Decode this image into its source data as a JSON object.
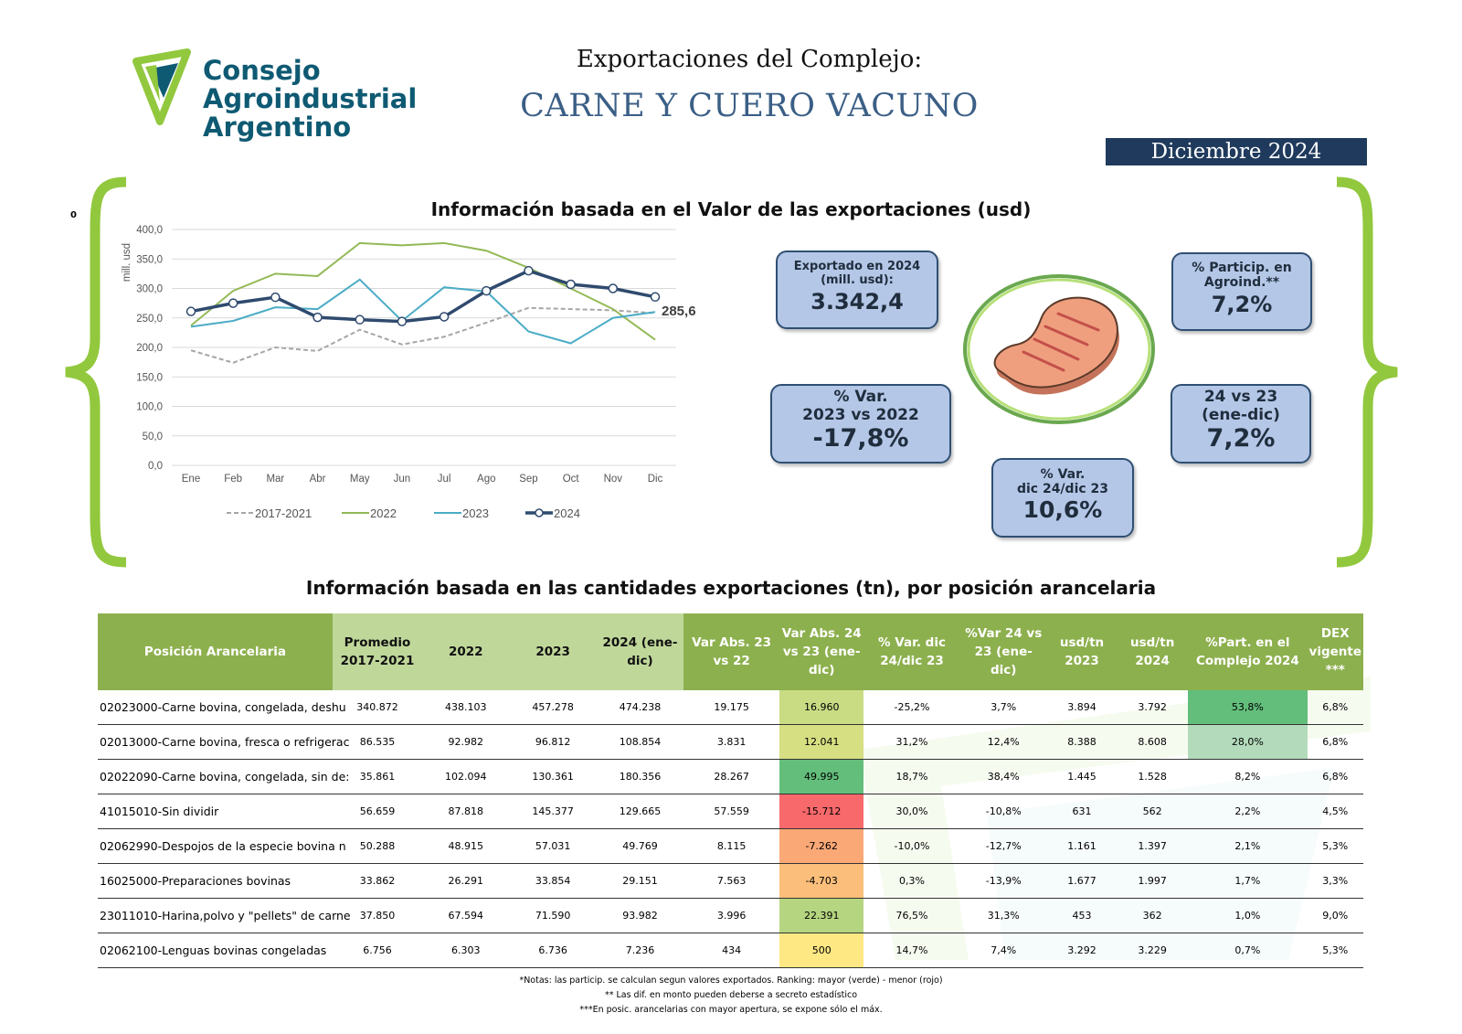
{
  "header": {
    "logo_line1": "Consejo",
    "logo_line2": "Agroindustrial",
    "logo_line3": "Argentino",
    "title_line1": "Exportaciones del Complejo:",
    "title_line2": "CARNE Y CUERO VACUNO",
    "date": "Diciembre 2024",
    "stray_mark": "0"
  },
  "colors": {
    "green_brace": "#92c83e",
    "navy": "#1f3a5c",
    "kpi_fill": "#b4c7e7",
    "series_2017_2021": "#a6a6a6",
    "series_2022": "#93b956",
    "series_2023": "#4bacc6",
    "series_2024": "#2f4a6e",
    "header_green_dark": "#8db04e",
    "header_green_light": "#c0d79a"
  },
  "value_section": {
    "title": "Información basada en el Valor de las exportaciones (usd)",
    "last_value_label": "285,6"
  },
  "chart_data": {
    "type": "line",
    "categories": [
      "Ene",
      "Feb",
      "Mar",
      "Abr",
      "May",
      "Jun",
      "Jul",
      "Ago",
      "Sep",
      "Oct",
      "Nov",
      "Dic"
    ],
    "ylabel": "mill. usd",
    "ylim": [
      0,
      400
    ],
    "yticks": [
      "0,0",
      "50,0",
      "100,0",
      "150,0",
      "200,0",
      "250,0",
      "300,0",
      "350,0",
      "400,0"
    ],
    "grid": true,
    "legend": "bottom",
    "series": [
      {
        "name": "2017-2021",
        "style": "dashed",
        "values": [
          195,
          174,
          200,
          194,
          230,
          205,
          218,
          242,
          267,
          265,
          263,
          258
        ]
      },
      {
        "name": "2022",
        "style": "solid",
        "values": [
          237,
          296,
          325,
          321,
          377,
          373,
          377,
          364,
          335,
          300,
          265,
          213
        ]
      },
      {
        "name": "2023",
        "style": "solid",
        "values": [
          235,
          245,
          268,
          265,
          315,
          245,
          302,
          295,
          227,
          207,
          250,
          260
        ]
      },
      {
        "name": "2024",
        "style": "markers",
        "values": [
          261,
          275,
          285,
          251,
          247,
          244,
          252,
          296,
          330,
          307,
          300,
          285.6
        ]
      }
    ]
  },
  "kpis": {
    "exported": {
      "label1": "Exportado en 2024",
      "label2": "(mill. usd):",
      "value": "3.342,4"
    },
    "particip": {
      "label1": "% Particip. en",
      "label2": "Agroind.**",
      "value": "7,2%"
    },
    "var2322": {
      "label1": "% Var.",
      "label2": "2023 vs 2022",
      "value": "-17,8%"
    },
    "var2423": {
      "label1": "24 vs 23",
      "label2": "(ene-dic)",
      "value": "7,2%"
    },
    "vardic": {
      "label1": "% Var.",
      "label2": "dic 24/dic 23",
      "value": "10,6%"
    },
    "icon": "steak-icon"
  },
  "quantity_section": {
    "title": "Información basada en las cantidades exportaciones (tn), por posición arancelaria"
  },
  "table": {
    "headers": [
      "Posición Arancelaria",
      "Promedio 2017-2021",
      "2022",
      "2023",
      "2024 (ene-dic)",
      "Var Abs. 23 vs 22",
      "Var Abs. 24 vs 23 (ene-dic)",
      "% Var. dic 24/dic 23",
      "%Var 24 vs 23 (ene-dic)",
      "usd/tn 2023",
      "usd/tn 2024",
      "%Part. en el Complejo 2024",
      "DEX vigente ***"
    ],
    "rows": [
      {
        "name": "02023000-Carne bovina, congelada, deshu",
        "prom": "340.872",
        "y2022": "438.103",
        "y2023": "457.278",
        "y2024": "474.238",
        "var2322": "19.175",
        "var2423": "16.960",
        "vardic": "-25,2%",
        "varpct": "3,7%",
        "usd23": "3.894",
        "usd24": "3.792",
        "part": "53,8%",
        "dex": "6,8%",
        "var_color": "#c9dc84",
        "part_color": "#63be7b"
      },
      {
        "name": "02013000-Carne bovina, fresca o refrigerac",
        "prom": "86.535",
        "y2022": "92.982",
        "y2023": "96.812",
        "y2024": "108.854",
        "var2322": "3.831",
        "var2423": "12.041",
        "vardic": "31,2%",
        "varpct": "12,4%",
        "usd23": "8.388",
        "usd24": "8.608",
        "part": "28,0%",
        "dex": "6,8%",
        "var_color": "#d6df82",
        "part_color": "#b3dbbb"
      },
      {
        "name": "02022090-Carne bovina, congelada, sin de:",
        "prom": "35.861",
        "y2022": "102.094",
        "y2023": "130.361",
        "y2024": "180.356",
        "var2322": "28.267",
        "var2423": "49.995",
        "vardic": "18,7%",
        "varpct": "38,4%",
        "usd23": "1.445",
        "usd24": "1.528",
        "part": "8,2%",
        "dex": "6,8%",
        "var_color": "#63be7b",
        "part_color": ""
      },
      {
        "name": "41015010-Sin dividir",
        "prom": "56.659",
        "y2022": "87.818",
        "y2023": "145.377",
        "y2024": "129.665",
        "var2322": "57.559",
        "var2423": "-15.712",
        "vardic": "30,0%",
        "varpct": "-10,8%",
        "usd23": "631",
        "usd24": "562",
        "part": "2,2%",
        "dex": "4,5%",
        "var_color": "#f8696b",
        "part_color": ""
      },
      {
        "name": "02062990-Despojos de la especie bovina n",
        "prom": "50.288",
        "y2022": "48.915",
        "y2023": "57.031",
        "y2024": "49.769",
        "var2322": "8.115",
        "var2423": "-7.262",
        "vardic": "-10,0%",
        "varpct": "-12,7%",
        "usd23": "1.161",
        "usd24": "1.397",
        "part": "2,1%",
        "dex": "5,3%",
        "var_color": "#fba877",
        "part_color": ""
      },
      {
        "name": "16025000-Preparaciones bovinas",
        "prom": "33.862",
        "y2022": "26.291",
        "y2023": "33.854",
        "y2024": "29.151",
        "var2322": "7.563",
        "var2423": "-4.703",
        "vardic": "0,3%",
        "varpct": "-13,9%",
        "usd23": "1.677",
        "usd24": "1.997",
        "part": "1,7%",
        "dex": "3,3%",
        "var_color": "#fcbf7b",
        "part_color": ""
      },
      {
        "name": "23011010-Harina,polvo y \"pellets\" de carne",
        "prom": "37.850",
        "y2022": "67.594",
        "y2023": "71.590",
        "y2024": "93.982",
        "var2322": "3.996",
        "var2423": "22.391",
        "vardic": "76,5%",
        "varpct": "31,3%",
        "usd23": "453",
        "usd24": "362",
        "part": "1,0%",
        "dex": "9,0%",
        "var_color": "#b5d580",
        "part_color": ""
      },
      {
        "name": "02062100-Lenguas bovinas congeladas",
        "prom": "6.756",
        "y2022": "6.303",
        "y2023": "6.736",
        "y2024": "7.236",
        "var2322": "434",
        "var2423": "500",
        "vardic": "14,7%",
        "varpct": "7,4%",
        "usd23": "3.292",
        "usd24": "3.229",
        "part": "0,7%",
        "dex": "5,3%",
        "var_color": "#fde883",
        "part_color": ""
      }
    ]
  },
  "notes": {
    "line1": "*Notas: las particip. se calculan segun valores exportados. Ranking: mayor (verde) - menor (rojo)",
    "line2": "** Las dif. en monto pueden deberse a secreto estadístico",
    "line3": "***En posic. arancelarias con mayor apertura, se expone sólo el máx."
  }
}
